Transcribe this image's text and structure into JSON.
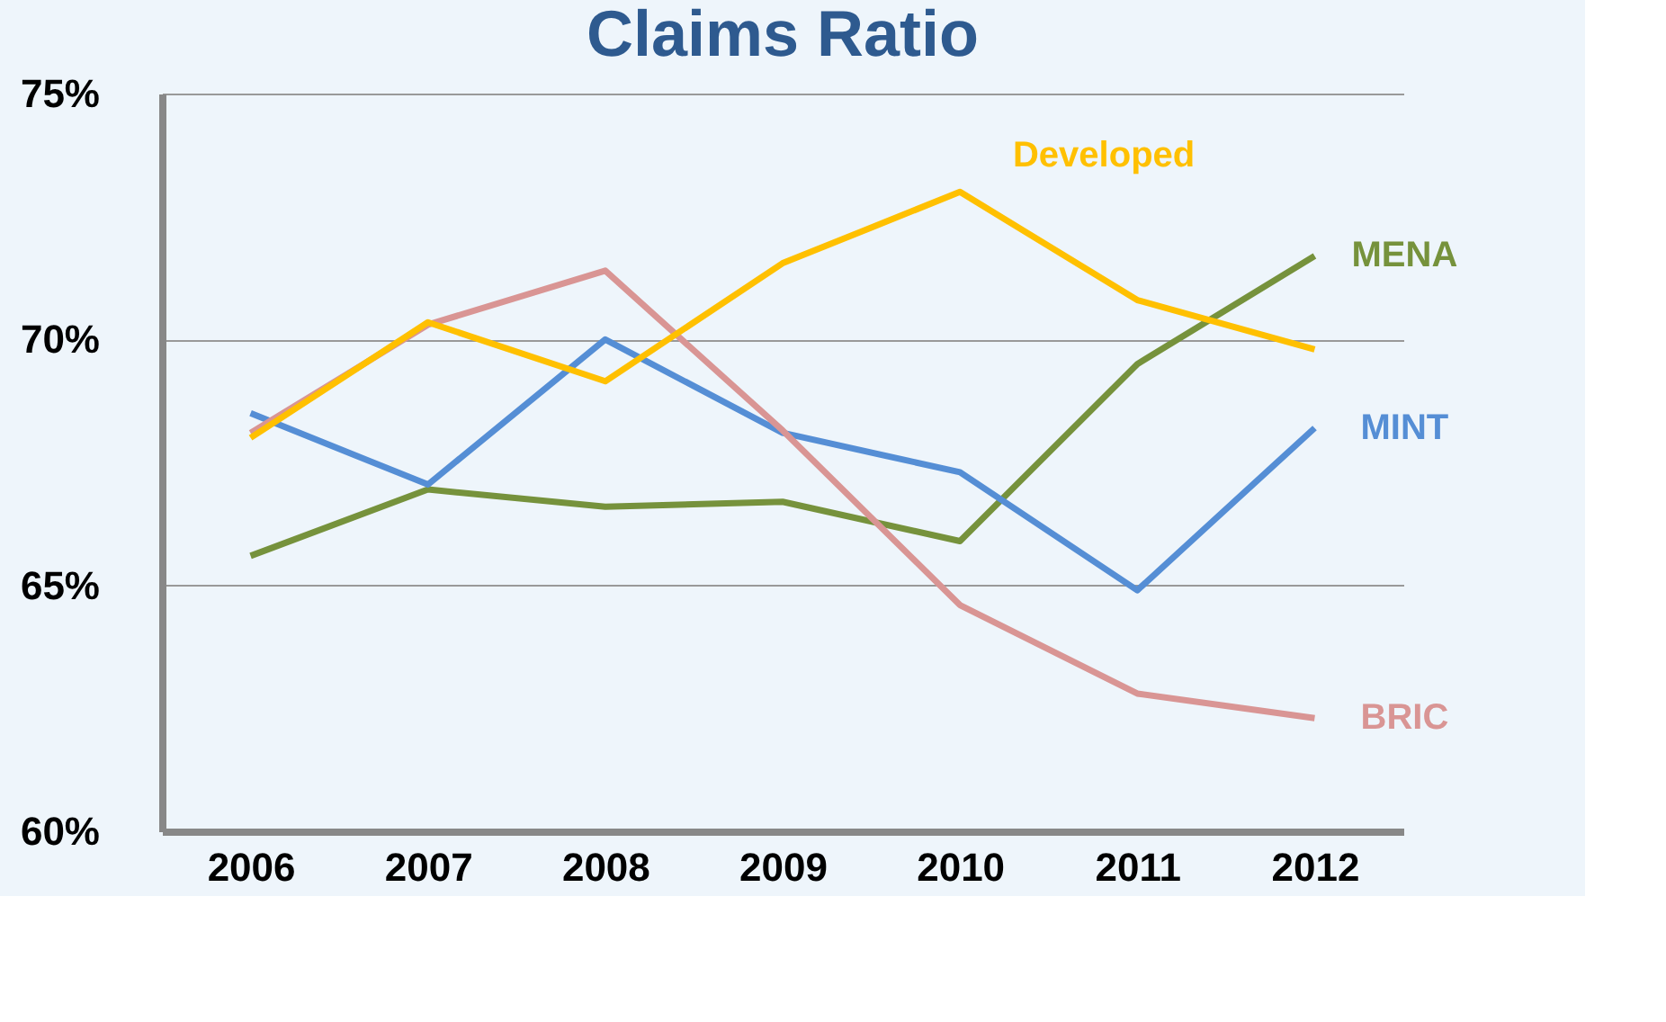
{
  "chart_data": {
    "type": "line",
    "title": "Claims Ratio",
    "categories": [
      "2006",
      "2007",
      "2008",
      "2009",
      "2010",
      "2011",
      "2012"
    ],
    "series": [
      {
        "name": "MENA",
        "color": "#76923c",
        "values": [
          65.6,
          66.95,
          66.6,
          66.7,
          65.9,
          69.5,
          71.7
        ]
      },
      {
        "name": "MINT",
        "color": "#558ed5",
        "values": [
          68.5,
          67.05,
          70.0,
          68.1,
          67.3,
          64.9,
          68.2
        ]
      },
      {
        "name": "BRIC",
        "color": "#d99594",
        "values": [
          68.1,
          70.3,
          71.4,
          68.15,
          64.6,
          62.8,
          62.3
        ]
      },
      {
        "name": "Developed",
        "color": "#ffc000",
        "values": [
          68.0,
          70.35,
          69.15,
          71.55,
          73.0,
          70.8,
          69.8
        ]
      }
    ],
    "ylim": [
      60,
      75
    ],
    "yticks": [
      {
        "value": 60,
        "label": "60%"
      },
      {
        "value": 65,
        "label": "65%"
      },
      {
        "value": 70,
        "label": "70%"
      },
      {
        "value": 75,
        "label": "75%"
      }
    ],
    "grid": "y",
    "marker": "none",
    "line_style": "solid"
  }
}
